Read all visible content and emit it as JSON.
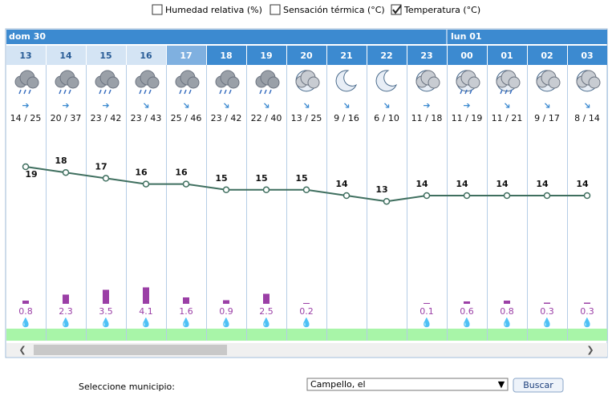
{
  "options": [
    "Humedad relativa (%)",
    "Sensación térmica (°C)",
    "Temperatura (°C)"
  ],
  "days": [
    "dom 30",
    "lun 01"
  ],
  "hours": [
    "13",
    "14",
    "15",
    "16",
    "17",
    "18",
    "19",
    "20",
    "21",
    "22",
    "23",
    "00",
    "01",
    "02",
    "03"
  ],
  "wind": [
    "14 / 25",
    "20 / 37",
    "23 / 42",
    "23 / 43",
    "25 / 46",
    "23 / 42",
    "22 / 40",
    "13 / 25",
    "9 / 16",
    "6 / 10",
    "11 / 18",
    "11 / 19",
    "11 / 21",
    "9 / 17",
    "8 / 14"
  ],
  "temperature": [
    19,
    18,
    17,
    16,
    16,
    15,
    15,
    15,
    14,
    13,
    14,
    14,
    14,
    14,
    14
  ],
  "precipitation": [
    0.8,
    2.3,
    3.5,
    4.1,
    1.6,
    0.9,
    2.5,
    0.2,
    null,
    null,
    0.1,
    0.6,
    0.8,
    0.3,
    0.3
  ],
  "form": {
    "label": "Seleccione municipio:",
    "selected": "Campello, el",
    "button": "Buscar"
  }
}
